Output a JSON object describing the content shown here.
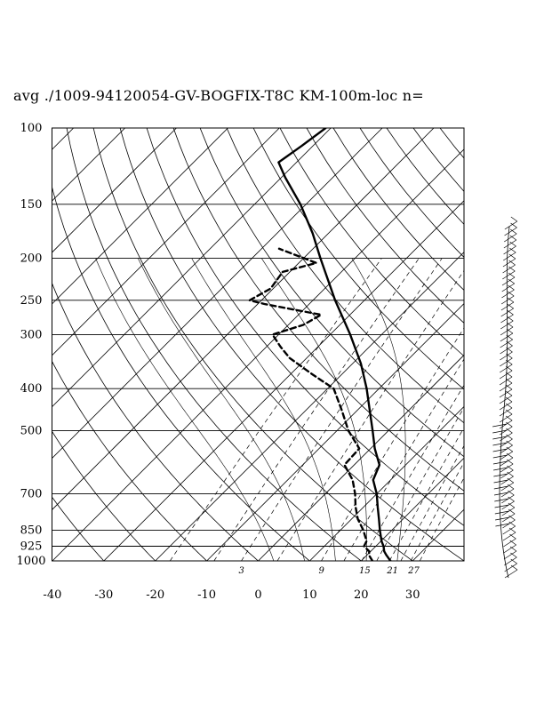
{
  "chart_data": {
    "type": "line",
    "subtype": "skew-T log-P diagram",
    "title": "avg ./1009-94120054-GV-BOGFIX-T8C KM-100m-loc n=",
    "xlabel": "",
    "ylabel": "",
    "y_scale": "log",
    "ylim": [
      1000,
      100
    ],
    "xlim": [
      -40,
      40
    ],
    "pressure_ticks": [
      100,
      150,
      200,
      250,
      300,
      400,
      500,
      700,
      850,
      925,
      1000
    ],
    "temperature_ticks": [
      -40,
      -30,
      -20,
      -10,
      0,
      10,
      20,
      30
    ],
    "mixing_ratio_labels": [
      "3",
      "9",
      "15",
      "21",
      "27"
    ],
    "mixing_ratios": [
      3,
      9,
      15,
      21,
      27
    ],
    "grid": true,
    "series": [
      {
        "style": "solid",
        "points": [
          {
            "p": 1000,
            "t": 25.7
          },
          {
            "p": 970,
            "t": 23.8
          },
          {
            "p": 950,
            "t": 22.6
          },
          {
            "p": 925,
            "t": 21.5
          },
          {
            "p": 900,
            "t": 20.1
          },
          {
            "p": 850,
            "t": 17.7
          },
          {
            "p": 800,
            "t": 15.3
          },
          {
            "p": 750,
            "t": 12.7
          },
          {
            "p": 700,
            "t": 10.0
          },
          {
            "p": 650,
            "t": 6.6
          },
          {
            "p": 600,
            "t": 4.9
          },
          {
            "p": 550,
            "t": 0.8
          },
          {
            "p": 500,
            "t": -3.1
          },
          {
            "p": 450,
            "t": -7.5
          },
          {
            "p": 400,
            "t": -12.4
          },
          {
            "p": 350,
            "t": -18.4
          },
          {
            "p": 300,
            "t": -26.1
          },
          {
            "p": 250,
            "t": -35.7
          },
          {
            "p": 200,
            "t": -46.7
          },
          {
            "p": 175,
            "t": -53.1
          },
          {
            "p": 150,
            "t": -61.1
          },
          {
            "p": 130,
            "t": -69.3
          },
          {
            "p": 120,
            "t": -73.5
          },
          {
            "p": 110,
            "t": -72.2
          },
          {
            "p": 100,
            "t": -71.0
          }
        ]
      },
      {
        "style": "dashed",
        "points": [
          {
            "p": 1000,
            "t": 22.2
          },
          {
            "p": 970,
            "t": 20.4
          },
          {
            "p": 950,
            "t": 19.7
          },
          {
            "p": 925,
            "t": 17.7
          },
          {
            "p": 900,
            "t": 17.2
          },
          {
            "p": 850,
            "t": 14.5
          },
          {
            "p": 800,
            "t": 11.2
          },
          {
            "p": 750,
            "t": 8.4
          },
          {
            "p": 700,
            "t": 5.8
          },
          {
            "p": 650,
            "t": 2.6
          },
          {
            "p": 600,
            "t": -1.9
          },
          {
            "p": 550,
            "t": -2.2
          },
          {
            "p": 500,
            "t": -7.8
          },
          {
            "p": 450,
            "t": -12.9
          },
          {
            "p": 400,
            "t": -18.8
          },
          {
            "p": 370,
            "t": -25.9
          },
          {
            "p": 340,
            "t": -33.3
          },
          {
            "p": 320,
            "t": -37.3
          },
          {
            "p": 300,
            "t": -41.2
          },
          {
            "p": 285,
            "t": -37.1
          },
          {
            "p": 270,
            "t": -35.6
          },
          {
            "p": 255,
            "t": -48.7
          },
          {
            "p": 250,
            "t": -52.3
          },
          {
            "p": 235,
            "t": -50.5
          },
          {
            "p": 215,
            "t": -51.4
          },
          {
            "p": 205,
            "t": -46.6
          },
          {
            "p": 190,
            "t": -56.6
          }
        ]
      }
    ]
  }
}
